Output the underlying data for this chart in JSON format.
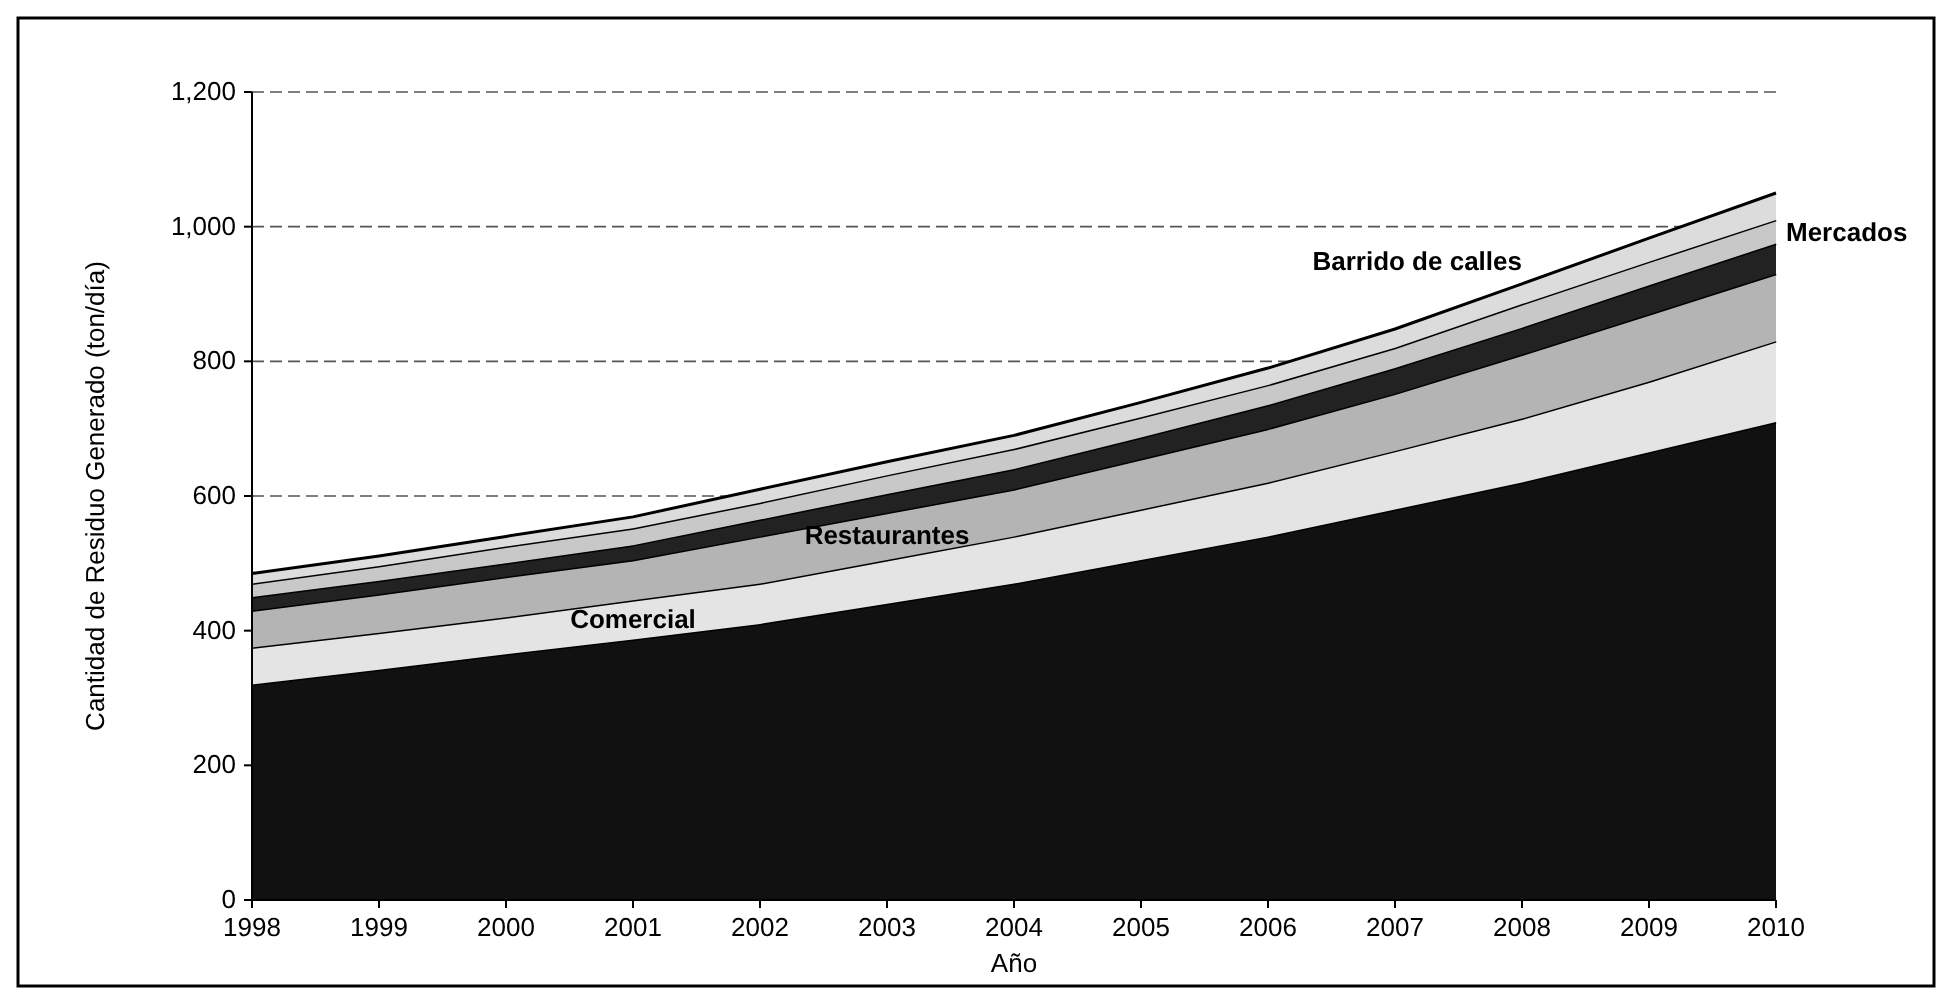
{
  "chart_data": {
    "type": "area",
    "stacked": true,
    "xlabel": "Año",
    "ylabel": "Cantidad de Residuo Generado (ton/día)",
    "x": [
      1998,
      1999,
      2000,
      2001,
      2002,
      2003,
      2004,
      2005,
      2006,
      2007,
      2008,
      2009,
      2010
    ],
    "xlim": [
      1998,
      2010
    ],
    "xticks": [
      1998,
      1999,
      2000,
      2001,
      2002,
      2003,
      2004,
      2005,
      2006,
      2007,
      2008,
      2009,
      2010
    ],
    "ylim": [
      0,
      1200
    ],
    "yticks": [
      0,
      200,
      400,
      600,
      800,
      {
        "value": 1000,
        "label": "1,000"
      },
      {
        "value": 1200,
        "label": "1,200"
      }
    ],
    "grid": "y",
    "series": [
      {
        "color": "#111111",
        "values": [
          320,
          342,
          365,
          387,
          410,
          440,
          470,
          505,
          540,
          580,
          620,
          665,
          710
        ]
      },
      {
        "name": "Comercial",
        "color": "#e4e4e4",
        "values": [
          55,
          55,
          55,
          58,
          60,
          65,
          70,
          75,
          80,
          87,
          95,
          105,
          120
        ]
      },
      {
        "name": "Restaurantes",
        "color": "#b4b4b4",
        "values": [
          55,
          57,
          60,
          60,
          70,
          70,
          70,
          75,
          80,
          85,
          95,
          100,
          100
        ]
      },
      {
        "color": "#222222",
        "values": [
          20,
          20,
          20,
          22,
          25,
          28,
          30,
          32,
          35,
          38,
          40,
          43,
          45
        ]
      },
      {
        "name": "Mercados",
        "color": "#c8c8c8",
        "values": [
          20,
          22,
          25,
          25,
          25,
          28,
          30,
          30,
          30,
          30,
          35,
          35,
          35
        ]
      },
      {
        "name": "Barrido de calles",
        "color": "#dcdcdc",
        "values": [
          15,
          15,
          15,
          17,
          20,
          20,
          20,
          22,
          25,
          28,
          30,
          35,
          40
        ]
      }
    ]
  }
}
